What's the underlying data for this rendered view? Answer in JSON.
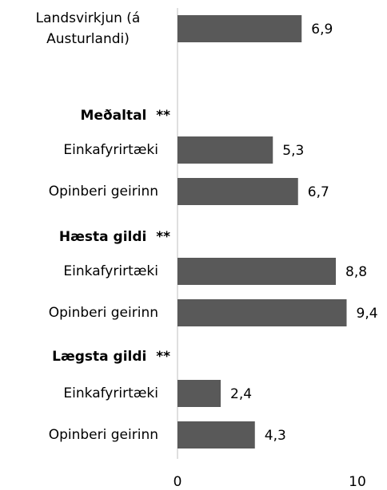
{
  "chart_data": {
    "type": "bar",
    "orientation": "horizontal",
    "categories": [
      "Landsvirkjun (á Austurlandi)",
      "Meðaltal  **",
      "Einkafyrirtæki",
      "Opinberi geirinn",
      "Hæsta gildi  **",
      "Einkafyrirtæki",
      "Opinberi geirinn",
      "Lægsta gildi  **",
      "Einkafyrirtæki",
      "Opinberi geirinn"
    ],
    "values": [
      6.9,
      null,
      5.3,
      6.7,
      null,
      8.8,
      9.4,
      null,
      2.4,
      4.3
    ],
    "value_labels": [
      "6,9",
      null,
      "5,3",
      "6,7",
      null,
      "8,8",
      "9,4",
      null,
      "2,4",
      "4,3"
    ],
    "color": "#595959",
    "xlim": [
      0,
      10
    ],
    "xticks": [
      0,
      10
    ]
  }
}
